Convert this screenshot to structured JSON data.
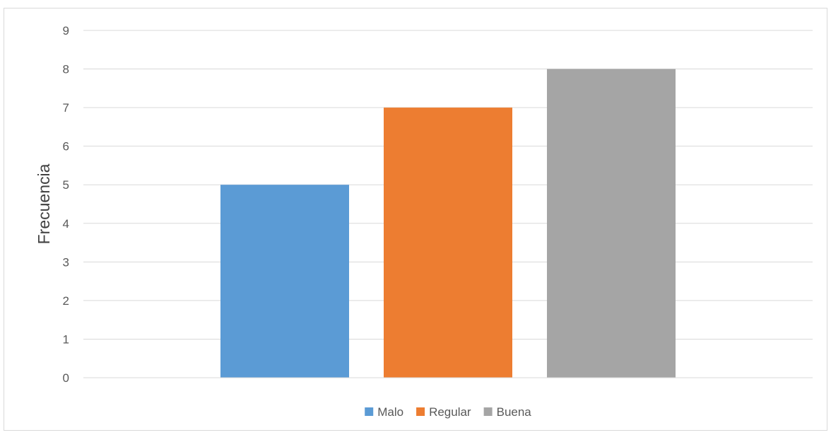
{
  "chart_data": {
    "type": "bar",
    "title": "",
    "xlabel": "",
    "ylabel": "Frecuencia",
    "ylim": [
      0,
      9
    ],
    "yticks": [
      0,
      1,
      2,
      3,
      4,
      5,
      6,
      7,
      8,
      9
    ],
    "grid": true,
    "legend_position": "bottom",
    "series": [
      {
        "name": "Malo",
        "values": [
          5
        ],
        "color": "#5b9bd5"
      },
      {
        "name": "Regular",
        "values": [
          7
        ],
        "color": "#ed7d31"
      },
      {
        "name": "Buena",
        "values": [
          8
        ],
        "color": "#a5a5a5"
      }
    ]
  }
}
